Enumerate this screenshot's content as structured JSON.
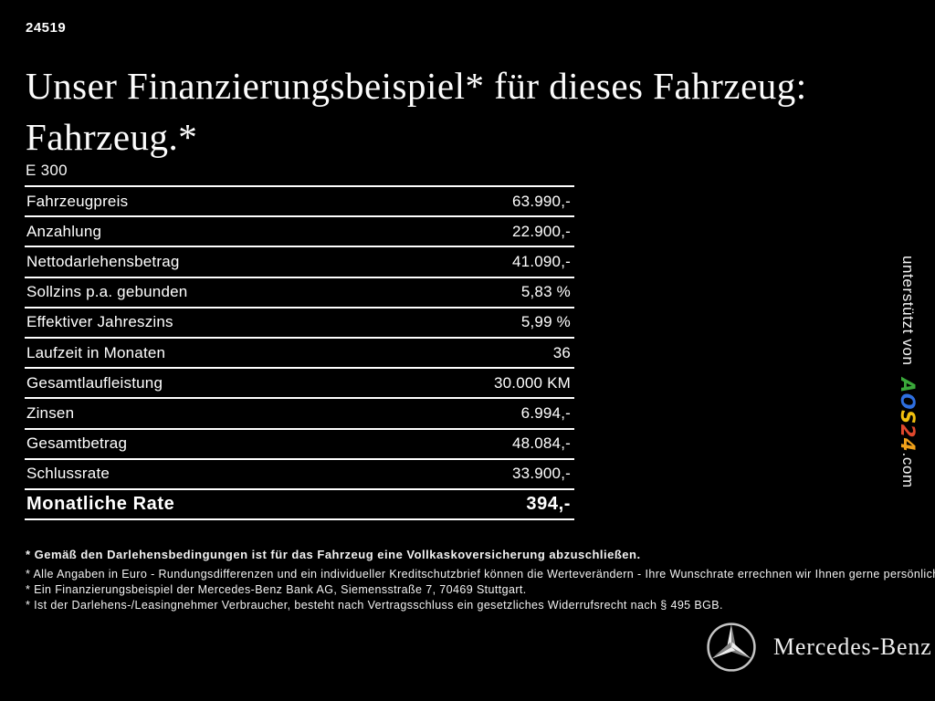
{
  "header": {
    "offer_id": "24519",
    "title_line1": "Unser Finanzierungsbeispiel* für dieses Fahrzeug:",
    "title_line2": "Fahrzeug.*",
    "model": "E 300"
  },
  "finance_table": {
    "rows": [
      {
        "label": "Fahrzeugpreis",
        "value": "63.990,-"
      },
      {
        "label": "Anzahlung",
        "value": "22.900,-"
      },
      {
        "label": "Nettodarlehensbetrag",
        "value": "41.090,-"
      },
      {
        "label": "Sollzins p.a. gebunden",
        "value": "5,83 %"
      },
      {
        "label": "Effektiver Jahreszins",
        "value": "5,99 %"
      },
      {
        "label": "Laufzeit in Monaten",
        "value": "36"
      },
      {
        "label": "Gesamtlaufleistung",
        "value": "30.000 KM"
      },
      {
        "label": "Zinsen",
        "value": "6.994,-"
      },
      {
        "label": "Gesamtbetrag",
        "value": "48.084,-"
      },
      {
        "label": "Schlussrate",
        "value": "33.900,-"
      },
      {
        "label": "Monatliche Rate",
        "value": "394,-"
      }
    ]
  },
  "footnotes": [
    "* Gemäß den Darlehensbedingungen ist für das Fahrzeug eine Vollkaskoversicherung abzuschließen.",
    "* Alle Angaben in Euro - Rundungsdifferenzen und ein individueller Kreditschutzbrief können die Werteverändern - Ihre Wunschrate errechnen wir Ihnen gerne persönlich",
    "* Ein Finanzierungsbeispiel der Mercedes-Benz Bank AG, Siemensstraße 7, 70469 Stuttgart.",
    "* Ist der Darlehens-/Leasingnehmer Verbraucher, besteht nach Vertragsschluss ein gesetzliches Widerrufsrecht nach § 495 BGB."
  ],
  "sidebar": {
    "prefix": "unterstützt von",
    "logo_letters": [
      {
        "ch": "A",
        "color": "#3aa83a"
      },
      {
        "ch": "O",
        "color": "#2e6fe0"
      },
      {
        "ch": "S",
        "color": "#f2c10f"
      },
      {
        "ch": "2",
        "color": "#e0482d"
      },
      {
        "ch": "4",
        "color": "#f0a11a"
      }
    ],
    "suffix": ".com"
  },
  "footer": {
    "brand": "Mercedes-Benz",
    "star": {
      "ring": "#c4c4c4",
      "facet_light": "#ededed",
      "facet_dark": "#828282"
    }
  },
  "colors": {
    "background": "#000000",
    "text": "#ffffff",
    "table_border": "#ffffff"
  }
}
